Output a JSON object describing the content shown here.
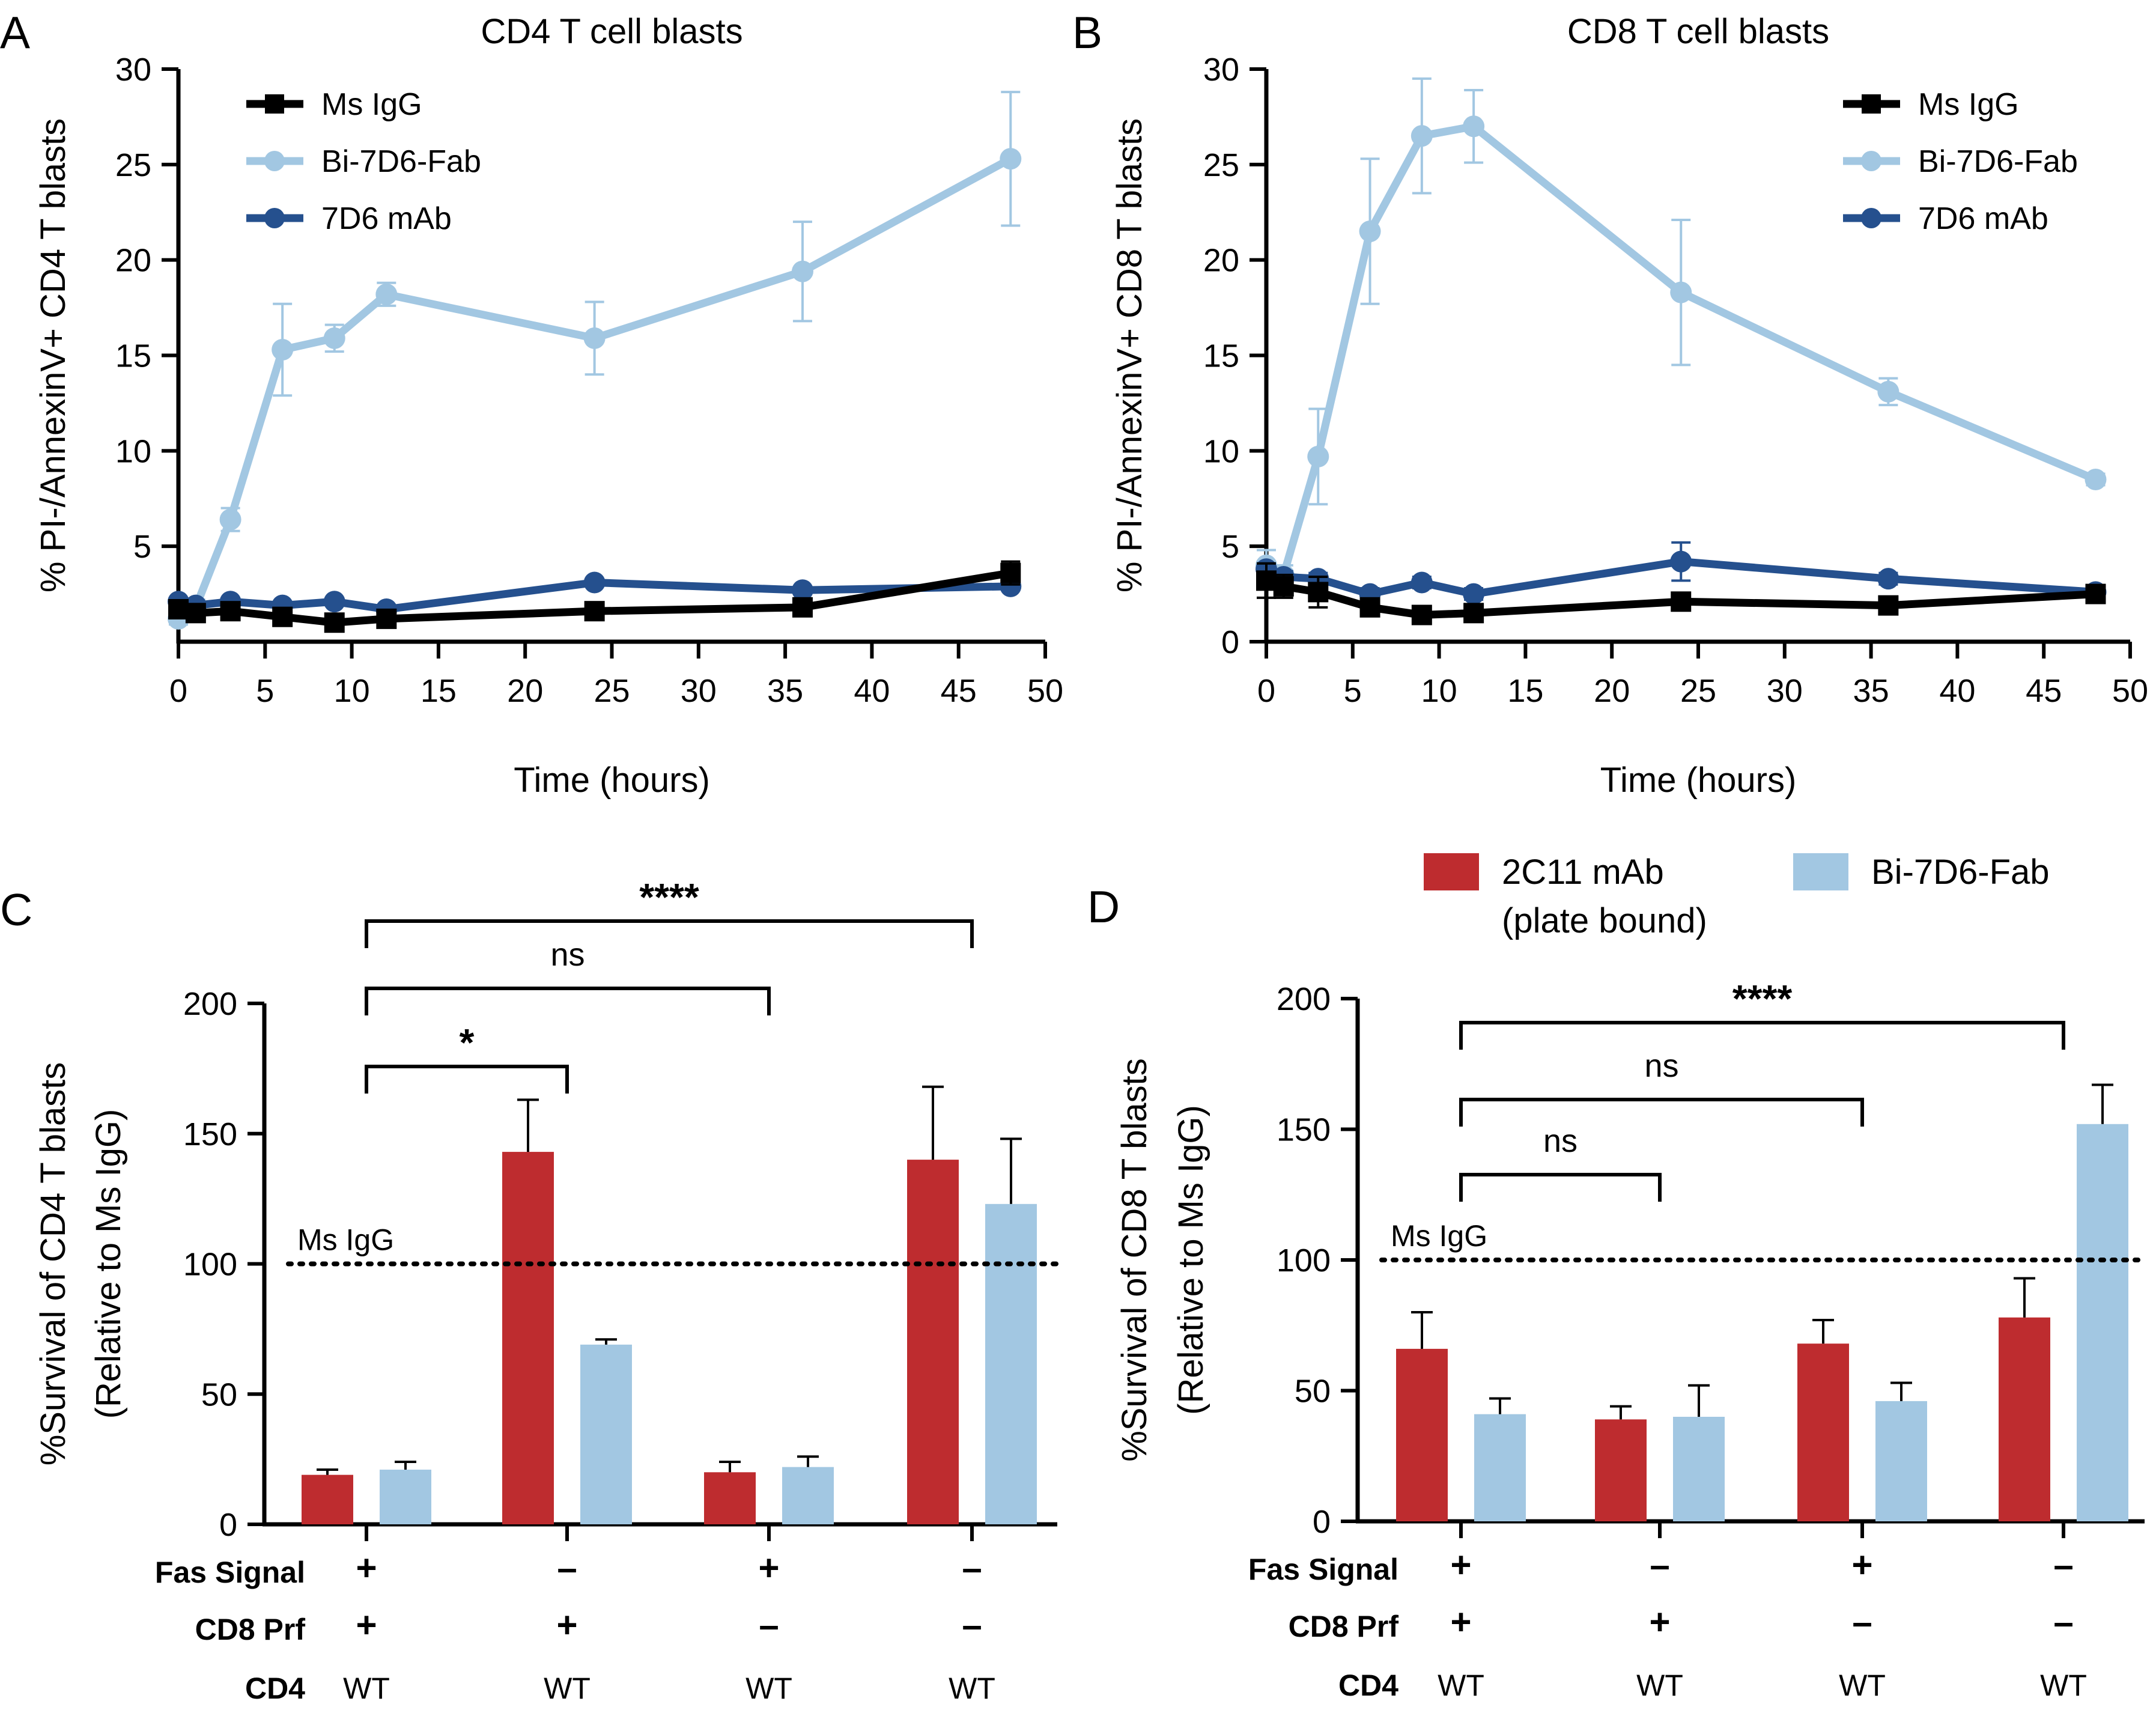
{
  "chart_data": [
    {
      "panel": "A",
      "type": "line",
      "title": "CD4 T cell blasts",
      "xlabel": "Time (hours)",
      "ylabel": "% PI-/AnnexinV+ CD4 T blasts",
      "xlim": [
        0,
        50
      ],
      "ylim": [
        0,
        30
      ],
      "xticks": [
        "0",
        "5",
        "10",
        "15",
        "20",
        "25",
        "30",
        "35",
        "40",
        "45",
        "50"
      ],
      "yticks": [
        "5",
        "10",
        "15",
        "20",
        "25",
        "30"
      ],
      "legend_position": "top-left",
      "series": [
        {
          "name": "Ms IgG",
          "color": "#000000",
          "marker": "square",
          "x": [
            0,
            1,
            3,
            6,
            9,
            12,
            24,
            36,
            48
          ],
          "y": [
            1.7,
            1.5,
            1.6,
            1.3,
            1.0,
            1.2,
            1.6,
            1.8,
            3.6
          ],
          "err": [
            0.3,
            0.3,
            0.3,
            0.3,
            0.3,
            0.3,
            0.2,
            0.3,
            0.6
          ]
        },
        {
          "name": "Bi-7D6-Fab",
          "color": "#a2c7e2",
          "marker": "circle",
          "x": [
            0,
            1,
            3,
            6,
            9,
            12,
            24,
            36,
            48
          ],
          "y": [
            1.2,
            1.8,
            6.4,
            15.3,
            15.9,
            18.2,
            15.9,
            19.4,
            25.3
          ],
          "err": [
            0.3,
            0.4,
            0.6,
            2.4,
            0.7,
            0.6,
            1.9,
            2.6,
            3.5
          ]
        },
        {
          "name": "7D6 mAb",
          "color": "#25508e",
          "marker": "circle",
          "x": [
            0,
            1,
            3,
            6,
            9,
            12,
            24,
            36,
            48
          ],
          "y": [
            2.1,
            1.9,
            2.1,
            1.9,
            2.1,
            1.7,
            3.1,
            2.7,
            2.9
          ],
          "err": [
            0.2,
            0.2,
            0.2,
            0.2,
            0.2,
            0.2,
            0.2,
            0.2,
            0.2
          ]
        }
      ]
    },
    {
      "panel": "B",
      "type": "line",
      "title": "CD8 T cell blasts",
      "xlabel": "Time (hours)",
      "ylabel": "% PI-/AnnexinV+ CD8 T blasts",
      "xlim": [
        0,
        50
      ],
      "ylim": [
        0,
        30
      ],
      "xticks": [
        "0",
        "5",
        "10",
        "15",
        "20",
        "25",
        "30",
        "35",
        "40",
        "45",
        "50"
      ],
      "yticks": [
        "0",
        "5",
        "10",
        "15",
        "20",
        "25",
        "30"
      ],
      "legend_position": "top-right",
      "series": [
        {
          "name": "Ms IgG",
          "color": "#000000",
          "marker": "square",
          "x": [
            0,
            1,
            3,
            6,
            9,
            12,
            24,
            36,
            48
          ],
          "y": [
            3.2,
            2.9,
            2.6,
            1.8,
            1.4,
            1.5,
            2.1,
            1.9,
            2.5
          ],
          "err": [
            0.9,
            0.6,
            0.8,
            0.3,
            0.3,
            0.3,
            0.3,
            0.3,
            0.3
          ]
        },
        {
          "name": "Bi-7D6-Fab",
          "color": "#a2c7e2",
          "marker": "circle",
          "x": [
            0,
            1,
            3,
            6,
            9,
            12,
            24,
            36,
            48
          ],
          "y": [
            4.0,
            3.5,
            9.7,
            21.5,
            26.5,
            27.0,
            18.3,
            13.1,
            8.5
          ],
          "err": [
            0.8,
            0.5,
            2.5,
            3.8,
            3.0,
            1.9,
            3.8,
            0.7,
            0.3
          ]
        },
        {
          "name": "7D6 mAb",
          "color": "#25508e",
          "marker": "circle",
          "x": [
            0,
            1,
            3,
            6,
            9,
            12,
            24,
            36,
            48
          ],
          "y": [
            3.8,
            3.4,
            3.3,
            2.5,
            3.1,
            2.5,
            4.2,
            3.3,
            2.6
          ],
          "err": [
            0.3,
            0.3,
            0.3,
            0.3,
            0.3,
            0.3,
            1.0,
            0.3,
            0.3
          ]
        }
      ]
    },
    {
      "panel": "C",
      "type": "bar",
      "ylabel": "%Survival of CD4 T blasts",
      "ylabel2": "(Relative to Ms IgG)",
      "ylim": [
        0,
        200
      ],
      "yticks": [
        "0",
        "50",
        "100",
        "150",
        "200"
      ],
      "reference_line": {
        "value": 100,
        "label": "Ms IgG"
      },
      "series": [
        {
          "name": "2C11 mAb (plate bound)",
          "color": "#be2c2f",
          "values": [
            19,
            143,
            20,
            140
          ],
          "err": [
            2,
            20,
            4,
            28
          ]
        },
        {
          "name": "Bi-7D6-Fab",
          "color": "#a2c7e2",
          "values": [
            21,
            69,
            22,
            123
          ],
          "err": [
            3,
            2,
            4,
            25
          ]
        }
      ],
      "conditions": {
        "labels": [
          "Fas Signal",
          "CD8 Prf",
          "CD4"
        ],
        "fas_signal": [
          "+",
          "–",
          "+",
          "–"
        ],
        "cd8_prf": [
          "+",
          "+",
          "–",
          "–"
        ],
        "cd4": [
          "WT",
          "WT",
          "WT",
          "WT"
        ]
      },
      "significance": [
        {
          "label": "*",
          "from_group": 1,
          "to_group": 2
        },
        {
          "label": "ns",
          "from_group": 1,
          "to_group": 3
        },
        {
          "label": "****",
          "from_group": 1,
          "to_group": 4
        }
      ]
    },
    {
      "panel": "D",
      "type": "bar",
      "ylabel": "%Survival of CD8 T blasts",
      "ylabel2": "(Relative to Ms IgG)",
      "ylim": [
        0,
        200
      ],
      "yticks": [
        "0",
        "50",
        "100",
        "150",
        "200"
      ],
      "reference_line": {
        "value": 100,
        "label": "Ms IgG"
      },
      "series": [
        {
          "name": "2C11 mAb (plate bound)",
          "color": "#be2c2f",
          "values": [
            66,
            39,
            68,
            78
          ],
          "err": [
            14,
            5,
            9,
            15
          ]
        },
        {
          "name": "Bi-7D6-Fab",
          "color": "#a2c7e2",
          "values": [
            41,
            40,
            46,
            152
          ],
          "err": [
            6,
            12,
            7,
            15
          ]
        }
      ],
      "legend": [
        {
          "line1": "2C11 mAb",
          "line2": "(plate bound)",
          "color": "#be2c2f"
        },
        {
          "line1": "Bi-7D6-Fab",
          "line2": "",
          "color": "#a2c7e2"
        }
      ],
      "conditions": {
        "labels": [
          "Fas Signal",
          "CD8 Prf",
          "CD4"
        ],
        "fas_signal": [
          "+",
          "–",
          "+",
          "–"
        ],
        "cd8_prf": [
          "+",
          "+",
          "–",
          "–"
        ],
        "cd4": [
          "WT",
          "WT",
          "WT",
          "WT"
        ]
      },
      "significance": [
        {
          "label": "ns",
          "from_group": 1,
          "to_group": 2
        },
        {
          "label": "ns",
          "from_group": 1,
          "to_group": 3
        },
        {
          "label": "****",
          "from_group": 1,
          "to_group": 4
        }
      ]
    }
  ]
}
